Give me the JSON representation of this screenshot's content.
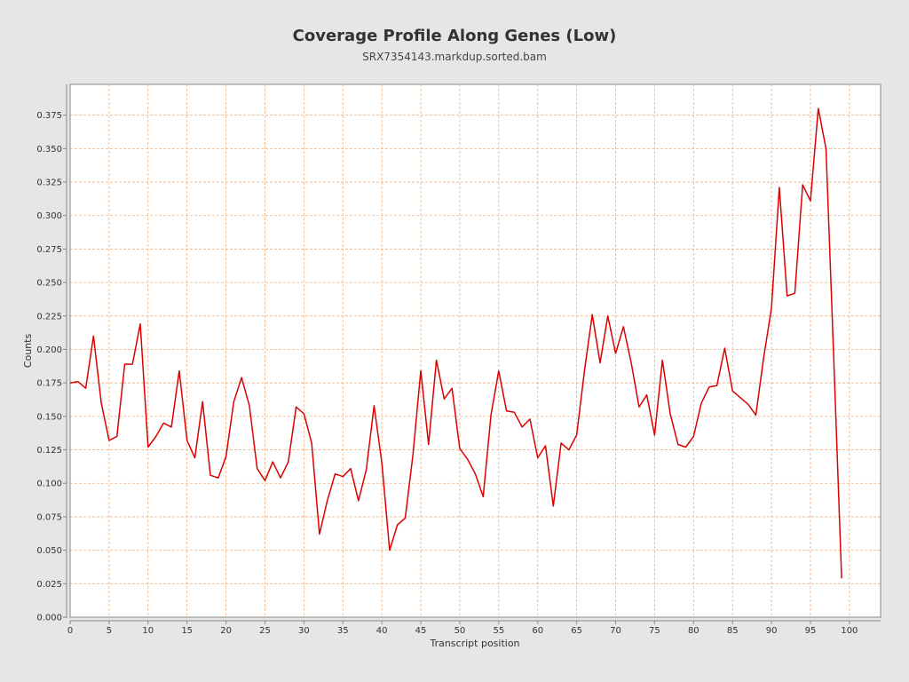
{
  "title": "Coverage Profile Along Genes (Low)",
  "subtitle": "SRX7354143.markdup.sorted.bam",
  "chart_data": {
    "type": "line",
    "title": "Coverage Profile Along Genes (Low)",
    "subtitle": "SRX7354143.markdup.sorted.bam",
    "xlabel": "Transcript position",
    "ylabel": "Counts",
    "xlim": [
      0,
      104
    ],
    "ylim": [
      0,
      0.398
    ],
    "xticks": [
      0,
      5,
      10,
      15,
      20,
      25,
      30,
      35,
      40,
      45,
      50,
      55,
      60,
      65,
      70,
      75,
      80,
      85,
      90,
      95,
      100
    ],
    "yticks": [
      "0.000",
      "0.025",
      "0.050",
      "0.075",
      "0.100",
      "0.125",
      "0.150",
      "0.175",
      "0.200",
      "0.225",
      "0.250",
      "0.275",
      "0.300",
      "0.325",
      "0.350",
      "0.375"
    ],
    "grid": true,
    "line_color": "#dd0000",
    "grid_color": "#f0b080",
    "series": [
      {
        "x": [
          0,
          1,
          2,
          3,
          4,
          5,
          6,
          7,
          8,
          9,
          10,
          11,
          12,
          13,
          14,
          15,
          16,
          17,
          18,
          19,
          20,
          21,
          22,
          23,
          24,
          25,
          26,
          27,
          28,
          29,
          30,
          31,
          32,
          33,
          34,
          35,
          36,
          37,
          38,
          39,
          40,
          41,
          42,
          43,
          44,
          45,
          46,
          47,
          48,
          49,
          50,
          51,
          52,
          53,
          54,
          55,
          56,
          57,
          58,
          59,
          60,
          61,
          62,
          63,
          64,
          65,
          66,
          67,
          68,
          69,
          70,
          71,
          72,
          73,
          74,
          75,
          76,
          77,
          78,
          79,
          80,
          81,
          82,
          83,
          84,
          85,
          86,
          87,
          88,
          89,
          90,
          91,
          92,
          93,
          94,
          95,
          96,
          97,
          98,
          99
        ],
        "values": [
          0.175,
          0.176,
          0.171,
          0.21,
          0.16,
          0.132,
          0.135,
          0.189,
          0.189,
          0.219,
          0.127,
          0.135,
          0.145,
          0.142,
          0.184,
          0.132,
          0.119,
          0.161,
          0.106,
          0.104,
          0.12,
          0.161,
          0.179,
          0.158,
          0.111,
          0.102,
          0.116,
          0.104,
          0.116,
          0.157,
          0.152,
          0.13,
          0.062,
          0.087,
          0.107,
          0.105,
          0.111,
          0.087,
          0.11,
          0.158,
          0.115,
          0.05,
          0.069,
          0.074,
          0.122,
          0.184,
          0.129,
          0.192,
          0.163,
          0.171,
          0.126,
          0.118,
          0.107,
          0.09,
          0.151,
          0.184,
          0.154,
          0.153,
          0.142,
          0.148,
          0.119,
          0.128,
          0.083,
          0.13,
          0.125,
          0.136,
          0.184,
          0.226,
          0.19,
          0.225,
          0.197,
          0.217,
          0.19,
          0.157,
          0.166,
          0.136,
          0.192,
          0.152,
          0.129,
          0.127,
          0.135,
          0.16,
          0.172,
          0.173,
          0.201,
          0.169,
          0.164,
          0.159,
          0.151,
          0.194,
          0.231,
          0.321,
          0.24,
          0.242,
          0.323,
          0.311,
          0.38,
          0.35,
          0.192,
          0.029
        ]
      }
    ]
  }
}
